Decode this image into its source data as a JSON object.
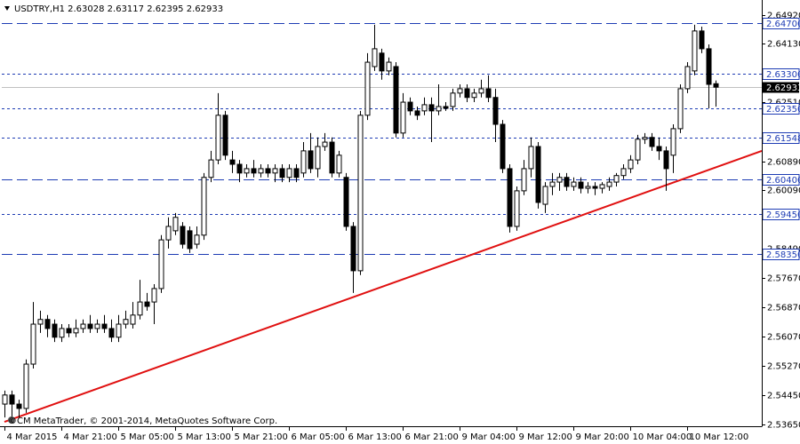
{
  "chart_data": {
    "type": "candlestick",
    "title": "USDTRY,H1  2.63028 2.63117 2.62395 2.62933",
    "footer": "©CM MetaTrader, © 2001-2014, MetaQuotes Software Corp.",
    "open": [
      2.5421,
      2.5446,
      2.5421,
      2.5409,
      2.5531,
      2.5641,
      2.5654,
      2.5641,
      2.5605,
      2.5629,
      2.5617,
      2.5629,
      2.5641,
      2.5629,
      2.5641,
      2.5629,
      2.5605,
      2.5641,
      2.5641,
      2.5666,
      2.5702,
      2.5702,
      2.5739,
      2.5873,
      2.5898,
      2.591,
      2.5898,
      2.5861,
      2.5886,
      2.6045,
      2.6093,
      2.6216,
      2.6093,
      2.6081,
      2.6057,
      2.6069,
      2.6057,
      2.6069,
      2.6057,
      2.6069,
      2.6045,
      2.6069,
      2.6057,
      2.6118,
      2.6069,
      2.613,
      2.6142,
      2.6057,
      2.6045,
      2.591,
      2.5788,
      2.6216,
      2.635,
      2.6387,
      2.6338,
      2.635,
      2.6167,
      2.6252,
      2.6228,
      2.6228,
      2.6245,
      2.6228,
      2.624,
      2.624,
      2.6277,
      2.6289,
      2.6265,
      2.6277,
      2.6289,
      2.6265,
      2.6191,
      2.6069,
      2.591,
      2.6008,
      2.6069,
      2.613,
      2.5971,
      2.602,
      2.6032,
      2.6045,
      2.602,
      2.6032,
      2.6015,
      2.602,
      2.6015,
      2.602,
      2.6032,
      2.605,
      2.6069,
      2.6093,
      2.615,
      2.6155,
      2.613,
      2.6118,
      2.6106,
      2.6179,
      2.6289,
      2.6338,
      2.6448,
      2.6399,
      2.63028
    ],
    "high": [
      2.5458,
      2.5458,
      2.5433,
      2.5544,
      2.5702,
      2.5678,
      2.5666,
      2.5654,
      2.5641,
      2.5641,
      2.5654,
      2.5654,
      2.5666,
      2.5654,
      2.5666,
      2.5654,
      2.5666,
      2.5678,
      2.5702,
      2.5763,
      2.5727,
      2.5751,
      2.5886,
      2.5935,
      2.5947,
      2.5922,
      2.591,
      2.591,
      2.6057,
      2.6118,
      2.6277,
      2.6228,
      2.6118,
      2.6093,
      2.6081,
      2.6093,
      2.6081,
      2.6081,
      2.6081,
      2.6081,
      2.6081,
      2.6081,
      2.6142,
      2.6167,
      2.6155,
      2.6167,
      2.6155,
      2.6118,
      2.6057,
      2.5922,
      2.6228,
      2.6387,
      2.6465,
      2.6399,
      2.6375,
      2.6362,
      2.6277,
      2.6265,
      2.624,
      2.6265,
      2.6265,
      2.6301,
      2.6252,
      2.6289,
      2.6301,
      2.6301,
      2.6289,
      2.6314,
      2.6326,
      2.6289,
      2.6203,
      2.6081,
      2.602,
      2.6093,
      2.6155,
      2.6142,
      2.6032,
      2.6057,
      2.6057,
      2.6057,
      2.6045,
      2.6045,
      2.6032,
      2.6032,
      2.6032,
      2.6045,
      2.6057,
      2.6081,
      2.6106,
      2.6162,
      2.6167,
      2.6167,
      2.6155,
      2.613,
      2.6191,
      2.6301,
      2.6362,
      2.6465,
      2.646,
      2.6411,
      2.63117
    ],
    "low": [
      2.5384,
      2.5384,
      2.5384,
      2.5397,
      2.5519,
      2.5617,
      2.5605,
      2.5592,
      2.5592,
      2.5605,
      2.5605,
      2.5617,
      2.5617,
      2.5617,
      2.5617,
      2.5592,
      2.5592,
      2.5629,
      2.5629,
      2.5654,
      2.5678,
      2.5641,
      2.5727,
      2.5849,
      2.5886,
      2.5849,
      2.5837,
      2.5849,
      2.5873,
      2.6032,
      2.6081,
      2.6093,
      2.6057,
      2.6032,
      2.6045,
      2.6045,
      2.6045,
      2.6045,
      2.6032,
      2.6032,
      2.6032,
      2.6032,
      2.6045,
      2.6057,
      2.6045,
      2.6118,
      2.6045,
      2.6045,
      2.5898,
      2.5727,
      2.5776,
      2.6203,
      2.6338,
      2.6314,
      2.6326,
      2.6155,
      2.6155,
      2.6216,
      2.6203,
      2.6216,
      2.6142,
      2.6216,
      2.6228,
      2.6228,
      2.6265,
      2.6252,
      2.6252,
      2.6265,
      2.6252,
      2.6142,
      2.6057,
      2.5893,
      2.5898,
      2.5996,
      2.6045,
      2.5959,
      2.5947,
      2.5996,
      2.6008,
      2.6008,
      2.6008,
      2.6001,
      2.6001,
      2.5996,
      2.6001,
      2.6008,
      2.602,
      2.604,
      2.6057,
      2.6081,
      2.6137,
      2.6118,
      2.6093,
      2.6008,
      2.6057,
      2.6167,
      2.6277,
      2.6326,
      2.6387,
      2.6235,
      2.62395
    ],
    "close": [
      2.5446,
      2.5421,
      2.5409,
      2.5531,
      2.5641,
      2.5654,
      2.5629,
      2.5605,
      2.5629,
      2.5617,
      2.5629,
      2.5641,
      2.5629,
      2.5641,
      2.5629,
      2.5605,
      2.5641,
      2.5654,
      2.5666,
      2.5702,
      2.569,
      2.5739,
      2.5873,
      2.591,
      2.5935,
      2.5861,
      2.5849,
      2.5886,
      2.6045,
      2.6093,
      2.6216,
      2.6106,
      2.6081,
      2.6057,
      2.6069,
      2.6057,
      2.6069,
      2.6057,
      2.6069,
      2.6045,
      2.6069,
      2.6045,
      2.6118,
      2.6069,
      2.613,
      2.6142,
      2.6057,
      2.6106,
      2.591,
      2.5788,
      2.6216,
      2.6362,
      2.6399,
      2.6338,
      2.6362,
      2.6167,
      2.6252,
      2.6228,
      2.6216,
      2.6245,
      2.6228,
      2.624,
      2.6235,
      2.6277,
      2.6289,
      2.6265,
      2.6277,
      2.6289,
      2.6265,
      2.6191,
      2.6069,
      2.591,
      2.6008,
      2.6069,
      2.613,
      2.5976,
      2.602,
      2.6032,
      2.6045,
      2.602,
      2.6032,
      2.6015,
      2.602,
      2.6015,
      2.6025,
      2.6032,
      2.605,
      2.6069,
      2.6093,
      2.615,
      2.6155,
      2.613,
      2.6118,
      2.6069,
      2.6179,
      2.6289,
      2.635,
      2.6448,
      2.6399,
      2.6301,
      2.62933
    ],
    "bull_color": "#ffffff",
    "bear_color": "#000000",
    "wick_color": "#000000",
    "xlim": [
      -0.375,
      106.5
    ],
    "xticks": [
      {
        "value": 0,
        "label": "4 Mar 2015"
      },
      {
        "value": 8,
        "label": "4 Mar 21:00"
      },
      {
        "value": 16,
        "label": "5 Mar 05:00"
      },
      {
        "value": 24,
        "label": "5 Mar 13:00"
      },
      {
        "value": 32,
        "label": "5 Mar 21:00"
      },
      {
        "value": 40,
        "label": "6 Mar 05:00"
      },
      {
        "value": 48,
        "label": "6 Mar 13:00"
      },
      {
        "value": 56,
        "label": "6 Mar 21:00"
      },
      {
        "value": 64,
        "label": "9 Mar 04:00"
      },
      {
        "value": 72,
        "label": "9 Mar 12:00"
      },
      {
        "value": 80,
        "label": "9 Mar 20:00"
      },
      {
        "value": 88,
        "label": "10 Mar 04:00"
      },
      {
        "value": 96,
        "label": "10 Mar 12:00"
      }
    ],
    "ylim": [
      2.536,
      2.6521
    ],
    "yticks": [
      {
        "value": 2.6492,
        "label": "2.64920"
      },
      {
        "value": 2.6413,
        "label": "2.64130"
      },
      {
        "value": 2.6251,
        "label": "2.62510"
      },
      {
        "value": 2.6089,
        "label": "2.60890"
      },
      {
        "value": 2.6009,
        "label": "2.60090"
      },
      {
        "value": 2.5849,
        "label": "2.58490"
      },
      {
        "value": 2.5767,
        "label": "2.57670"
      },
      {
        "value": 2.5687,
        "label": "2.56870"
      },
      {
        "value": 2.5607,
        "label": "2.56070"
      },
      {
        "value": 2.5527,
        "label": "2.55270"
      },
      {
        "value": 2.5445,
        "label": "2.54450"
      },
      {
        "value": 2.5365,
        "label": "2.53650"
      }
    ],
    "levels": [
      {
        "value": 2.647,
        "label": "2.64700",
        "style": "long"
      },
      {
        "value": 2.633,
        "label": "2.63300",
        "style": "short"
      },
      {
        "value": 2.6235,
        "label": "2.62350",
        "style": "short"
      },
      {
        "value": 2.61548,
        "label": "2.61548",
        "style": "short"
      },
      {
        "value": 2.604,
        "label": "2.60400",
        "style": "long"
      },
      {
        "value": 2.5945,
        "label": "2.59450",
        "style": "short"
      },
      {
        "value": 2.5835,
        "label": "2.58350",
        "style": "long"
      }
    ],
    "level_color": "#1e3cb4",
    "current_price": 2.62933,
    "price_line_color": "#c0c0c0",
    "trendline": {
      "x": [
        0,
        106.5
      ],
      "y": [
        2.5372,
        2.6118
      ],
      "color": "#e01010"
    }
  }
}
